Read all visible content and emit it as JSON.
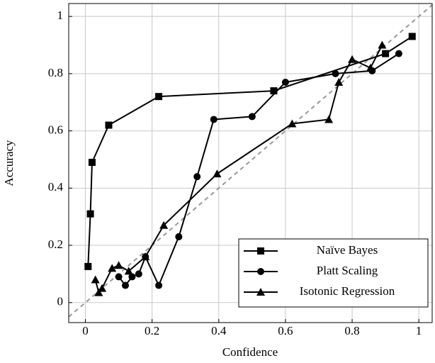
{
  "chart_data": {
    "type": "line",
    "xlabel": "Confidence",
    "ylabel": "Accuracy",
    "xlim": [
      -0.05,
      1.04
    ],
    "ylim": [
      -0.07,
      1.045
    ],
    "xticks": [
      0,
      0.2,
      0.4,
      0.6,
      0.8,
      1
    ],
    "yticks": [
      0,
      0.2,
      0.4,
      0.6,
      0.8,
      1
    ],
    "grid": true,
    "legend": "lower right",
    "series": [
      {
        "name": "Naïve Bayes",
        "color": "#000000",
        "marker": "square",
        "x": [
          0.008,
          0.015,
          0.02,
          0.07,
          0.22,
          0.565,
          0.9,
          0.98
        ],
        "values": [
          0.126,
          0.31,
          0.49,
          0.62,
          0.72,
          0.74,
          0.87,
          0.93
        ]
      },
      {
        "name": "Platt Scaling",
        "color": "#000000",
        "marker": "circle",
        "x": [
          0.1,
          0.12,
          0.14,
          0.16,
          0.18,
          0.22,
          0.28,
          0.335,
          0.385,
          0.5,
          0.6,
          0.75,
          0.86,
          0.94
        ],
        "values": [
          0.09,
          0.06,
          0.09,
          0.1,
          0.16,
          0.06,
          0.23,
          0.44,
          0.64,
          0.65,
          0.77,
          0.8,
          0.81,
          0.87
        ]
      },
      {
        "name": "Isotonic Regression",
        "color": "#000000",
        "marker": "triangle",
        "x": [
          0.03,
          0.04,
          0.05,
          0.08,
          0.1,
          0.13,
          0.18,
          0.235,
          0.395,
          0.62,
          0.73,
          0.76,
          0.8,
          0.855,
          0.89
        ],
        "values": [
          0.08,
          0.035,
          0.05,
          0.12,
          0.13,
          0.11,
          0.16,
          0.27,
          0.45,
          0.625,
          0.64,
          0.77,
          0.85,
          0.82,
          0.9
        ]
      }
    ]
  }
}
